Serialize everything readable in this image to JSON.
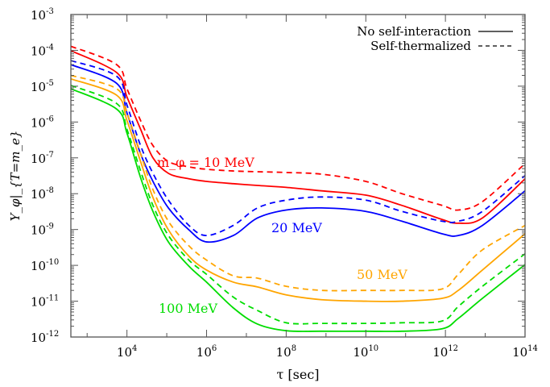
{
  "chart_data": {
    "type": "line",
    "title": "",
    "xlabel": "τ [sec]",
    "ylabel": "Y_φ|_{T=m_e}",
    "ylabel_parts": {
      "main": "Y",
      "sub1": "φ",
      "bar_sub": "T=m",
      "bar_sub_sub": "e"
    },
    "x_scale": "log",
    "y_scale": "log",
    "xlim": [
      390,
      100000000000000.0
    ],
    "ylim": [
      1e-12,
      0.001
    ],
    "x_ticks": [
      10000.0,
      1000000.0,
      100000000.0,
      10000000000.0,
      1000000000000.0,
      100000000000000.0
    ],
    "x_tick_exponents": [
      "4",
      "6",
      "8",
      "10",
      "12",
      "14"
    ],
    "y_ticks": [
      0.001,
      0.0001,
      1e-05,
      1e-06,
      1e-07,
      1e-08,
      1e-09,
      1e-10,
      1e-11,
      1e-12
    ],
    "y_tick_exponents": [
      "-3",
      "-4",
      "-5",
      "-6",
      "-7",
      "-8",
      "-9",
      "-10",
      "-11",
      "-12"
    ],
    "tick_base": "10",
    "grid": false,
    "legend": {
      "placement": "top-right",
      "entries": [
        {
          "label": "No self-interaction",
          "style": "solid"
        },
        {
          "label": "Self-thermalized",
          "style": "dashed"
        }
      ]
    },
    "annotations": [
      {
        "text": "m_φ = 10 MeV",
        "parts": {
          "m": "m",
          "sub": "φ",
          "rest": " = 10 MeV"
        },
        "color": "#ff0000"
      },
      {
        "text": "20 MeV",
        "color": "#0000ff"
      },
      {
        "text": "50 MeV",
        "color": "#ffa500"
      },
      {
        "text": "100 MeV",
        "color": "#00dd00"
      }
    ],
    "x": [
      390,
      5500.0,
      10000.0,
      22000.0,
      45000.0,
      110000.0,
      360000.0,
      1000000.0,
      4700000.0,
      19000000.0,
      100000000.0,
      780000000.0,
      10000000000.0,
      81000000000.0,
      830000000000.0,
      2100000000000.0,
      8500000000000.0,
      100000000000000.0
    ],
    "series": [
      {
        "mass": "10 MeV",
        "style": "solid",
        "color": "#ff0000",
        "values": [
          9.8e-05,
          2.4e-05,
          5e-06,
          6.3e-07,
          1e-07,
          3.7e-08,
          2.6e-08,
          2.2e-08,
          1.9e-08,
          1.7e-08,
          1.5e-08,
          1.2e-08,
          9.1e-09,
          4.7e-09,
          1.9e-09,
          1.5e-09,
          2.1e-09,
          2.6e-08
        ]
      },
      {
        "mass": "10 MeV",
        "style": "dashed",
        "color": "#ff0000",
        "values": [
          0.00013,
          4e-05,
          8.5e-06,
          1.1e-06,
          2.2e-07,
          7.9e-08,
          5.6e-08,
          4.8e-08,
          4.3e-08,
          4.1e-08,
          3.9e-08,
          3.5e-08,
          2.2e-08,
          1e-08,
          4.7e-09,
          3.5e-09,
          6e-09,
          6.9e-08
        ]
      },
      {
        "mass": "20 MeV",
        "style": "solid",
        "color": "#0000ff",
        "values": [
          4e-05,
          1.2e-05,
          1.8e-06,
          1.3e-07,
          2.2e-08,
          4e-09,
          9.8e-10,
          4.5e-10,
          6.8e-10,
          2.1e-09,
          3.5e-09,
          4e-09,
          3.2e-09,
          1.7e-09,
          7.6e-10,
          6.8e-10,
          1.3e-09,
          1.2e-08
        ]
      },
      {
        "mass": "20 MeV",
        "style": "dashed",
        "color": "#0000ff",
        "values": [
          5.2e-05,
          1.9e-05,
          3e-06,
          2.2e-07,
          3.7e-08,
          6.6e-09,
          1.3e-09,
          6.8e-10,
          1.3e-09,
          4e-09,
          6.6e-09,
          8.1e-09,
          6.6e-09,
          3.2e-09,
          1.7e-09,
          1.7e-09,
          3.2e-09,
          3.2e-08
        ]
      },
      {
        "mass": "50 MeV",
        "style": "solid",
        "color": "#ffa500",
        "values": [
          1.6e-05,
          5.6e-06,
          1.1e-06,
          7.9e-08,
          7.8e-09,
          9.8e-10,
          1.8e-10,
          7.4e-11,
          3.4e-11,
          2.5e-11,
          1.5e-11,
          1.1e-11,
          1e-11,
          1e-11,
          1.2e-11,
          2e-11,
          7.4e-11,
          7.6e-10
        ]
      },
      {
        "mass": "50 MeV",
        "style": "dashed",
        "color": "#ffa500",
        "values": [
          2e-05,
          8.5e-06,
          1.8e-06,
          1.3e-07,
          1.3e-08,
          1.7e-09,
          3.5e-10,
          1.4e-10,
          5.1e-11,
          4.4e-11,
          2.6e-11,
          2e-11,
          2e-11,
          2e-11,
          2.2e-11,
          5.6e-11,
          2.7e-10,
          1.3e-09
        ]
      },
      {
        "mass": "100 MeV",
        "style": "solid",
        "color": "#00dd00",
        "values": [
          8.5e-06,
          2.3e-06,
          4.9e-07,
          2.8e-08,
          3.2e-09,
          4.5e-10,
          9.5e-11,
          3.4e-11,
          6.5e-12,
          2.3e-12,
          1.5e-12,
          1.45e-12,
          1.45e-12,
          1.45e-12,
          1.7e-12,
          3.3e-12,
          1.2e-11,
          1.05e-10
        ]
      },
      {
        "mass": "100 MeV",
        "style": "dashed",
        "color": "#00dd00",
        "values": [
          1.05e-05,
          3.3e-06,
          6.3e-07,
          4.3e-08,
          4.7e-09,
          6.8e-10,
          1.4e-10,
          5.6e-11,
          1.3e-11,
          5.5e-12,
          2.5e-12,
          2.4e-12,
          2.4e-12,
          2.5e-12,
          2.8e-12,
          7.1e-12,
          2.6e-11,
          2.1e-10
        ]
      }
    ]
  }
}
